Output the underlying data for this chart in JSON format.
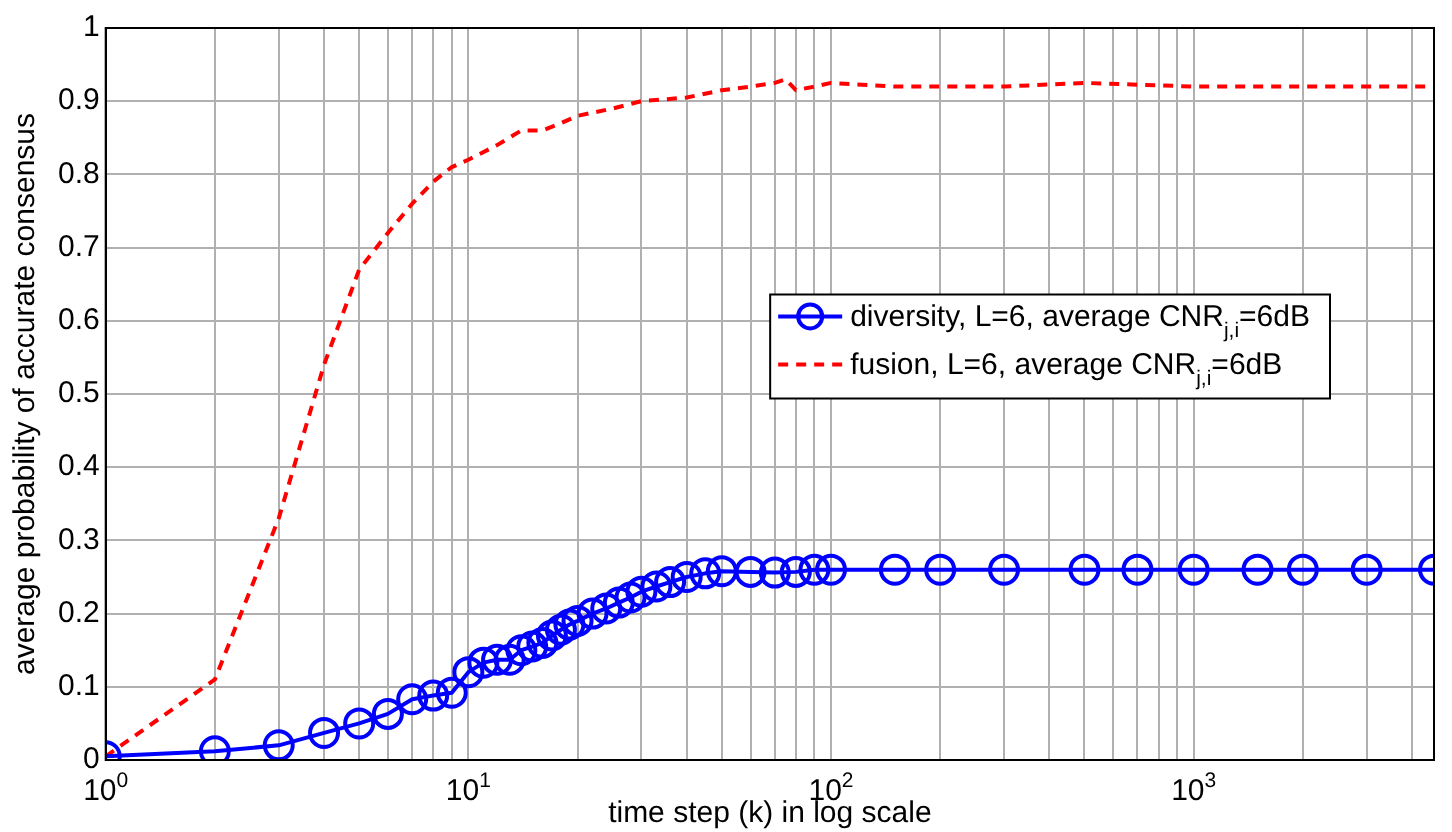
{
  "chart_data": {
    "type": "line",
    "xlabel": "time step (k) in log scale",
    "ylabel": "average probability of accurate consensus",
    "log": "x",
    "grid": true,
    "legend": "right",
    "xlim": [
      1,
      4600
    ],
    "ylim": [
      0,
      1
    ],
    "xticks": [
      {
        "value": 1,
        "label": "10$^{0}$"
      },
      {
        "value": 2,
        "label": null
      },
      {
        "value": 3,
        "label": null
      },
      {
        "value": 4,
        "label": null
      },
      {
        "value": 5,
        "label": null
      },
      {
        "value": 6,
        "label": null
      },
      {
        "value": 7,
        "label": null
      },
      {
        "value": 8,
        "label": null
      },
      {
        "value": 9,
        "label": null
      },
      {
        "value": 10,
        "label": "10$^{1}$"
      },
      {
        "value": 20,
        "label": null
      },
      {
        "value": 30,
        "label": null
      },
      {
        "value": 40,
        "label": null
      },
      {
        "value": 50,
        "label": null
      },
      {
        "value": 60,
        "label": null
      },
      {
        "value": 70,
        "label": null
      },
      {
        "value": 80,
        "label": null
      },
      {
        "value": 90,
        "label": null
      },
      {
        "value": 100,
        "label": "10$^{2}$"
      },
      {
        "value": 200,
        "label": null
      },
      {
        "value": 300,
        "label": null
      },
      {
        "value": 400,
        "label": null
      },
      {
        "value": 500,
        "label": null
      },
      {
        "value": 600,
        "label": null
      },
      {
        "value": 700,
        "label": null
      },
      {
        "value": 800,
        "label": null
      },
      {
        "value": 900,
        "label": null
      },
      {
        "value": 1000,
        "label": "10$^{3}$"
      },
      {
        "value": 2000,
        "label": null
      },
      {
        "value": 3000,
        "label": null
      },
      {
        "value": 4000,
        "label": null
      }
    ],
    "yticks": [
      0,
      0.1,
      0.2,
      0.3,
      0.4,
      0.5,
      0.6,
      0.7,
      0.8,
      0.9,
      1
    ],
    "series": [
      {
        "name": "diversity, L=6, average CNR$_{j,i}$=6dB",
        "color": "#0000ff",
        "marker": "circle",
        "line_style": "solid",
        "x": [
          1,
          2,
          3,
          4,
          5,
          6,
          7,
          8,
          9,
          10,
          11,
          12,
          13,
          14,
          15,
          16,
          17,
          18,
          19,
          20,
          22,
          24,
          26,
          28,
          30,
          33,
          36,
          40,
          45,
          50,
          60,
          70,
          80,
          90,
          100,
          150,
          200,
          300,
          500,
          700,
          1000,
          1500,
          2000,
          3000,
          4600
        ],
        "values": [
          0.005,
          0.012,
          0.02,
          0.037,
          0.05,
          0.063,
          0.083,
          0.088,
          0.092,
          0.12,
          0.133,
          0.137,
          0.137,
          0.15,
          0.155,
          0.16,
          0.17,
          0.178,
          0.185,
          0.19,
          0.2,
          0.207,
          0.215,
          0.222,
          0.23,
          0.237,
          0.243,
          0.25,
          0.255,
          0.258,
          0.257,
          0.256,
          0.257,
          0.26,
          0.26,
          0.26,
          0.26,
          0.26,
          0.26,
          0.26,
          0.26,
          0.26,
          0.26,
          0.26,
          0.26
        ]
      },
      {
        "name": "fusion, L=6, average CNR$_{j,i}$=6dB",
        "color": "#ff0000",
        "marker": "none",
        "line_style": "dashed",
        "x": [
          1,
          2,
          3,
          4,
          5,
          6,
          7,
          8,
          9,
          10,
          12,
          14,
          16,
          18,
          20,
          25,
          30,
          40,
          50,
          60,
          70,
          75,
          80,
          90,
          100,
          150,
          200,
          300,
          500,
          1000,
          2000,
          4600
        ],
        "values": [
          0.005,
          0.11,
          0.33,
          0.54,
          0.67,
          0.72,
          0.76,
          0.79,
          0.81,
          0.82,
          0.84,
          0.86,
          0.86,
          0.87,
          0.88,
          0.89,
          0.9,
          0.905,
          0.915,
          0.92,
          0.925,
          0.93,
          0.915,
          0.92,
          0.925,
          0.92,
          0.92,
          0.92,
          0.925,
          0.92,
          0.92,
          0.92
        ]
      }
    ]
  }
}
